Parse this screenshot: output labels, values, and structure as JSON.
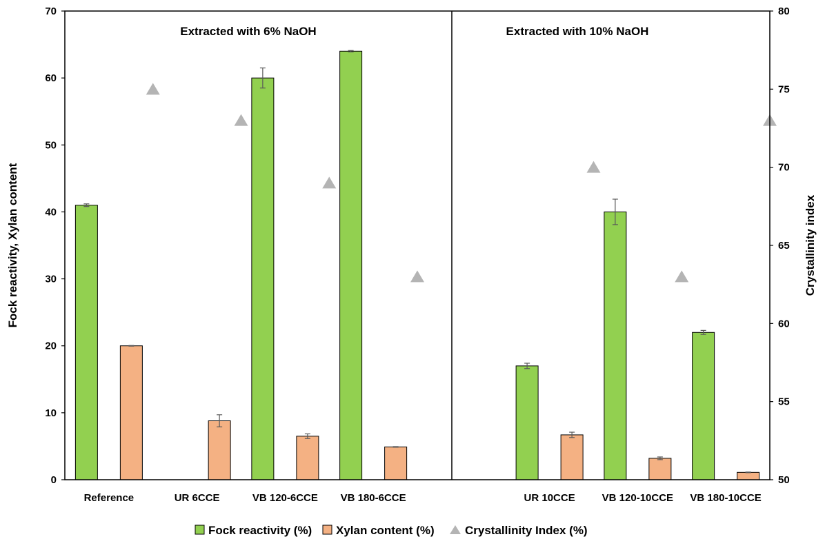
{
  "chart_data": {
    "type": "bar",
    "categories": [
      "Reference",
      "UR 6CCE",
      "VB 120-6CCE",
      "VB 180-6CCE",
      "",
      "UR 10CCE",
      "VB 120-10CCE",
      "VB 180-10CCE"
    ],
    "panels": [
      {
        "title": "Extracted with 6% NaOH",
        "categories": [
          "Reference",
          "UR 6CCE",
          "VB 120-6CCE",
          "VB 180-6CCE"
        ]
      },
      {
        "title": "Extracted with 10% NaOH",
        "categories": [
          "",
          "UR 10CCE",
          "VB 120-10CCE",
          "VB 180-10CCE"
        ]
      }
    ],
    "series": [
      {
        "name": "Fock reactivity (%)",
        "type": "bar",
        "axis": "left",
        "color": "#92d050",
        "values": [
          41,
          null,
          60,
          64,
          null,
          17,
          40,
          22
        ],
        "errors": [
          0.2,
          null,
          1.5,
          0.1,
          null,
          0.4,
          1.9,
          0.3
        ]
      },
      {
        "name": "Xylan content (%)",
        "type": "bar",
        "axis": "left",
        "color": "#f4b183",
        "values": [
          20,
          8.8,
          6.5,
          4.9,
          null,
          6.7,
          3.2,
          1.1
        ],
        "errors": [
          0.05,
          0.9,
          0.35,
          0.05,
          null,
          0.4,
          0.2,
          0.05
        ]
      },
      {
        "name": "Crystallinity Index (%)",
        "type": "scatter",
        "axis": "right",
        "color": "#b4b4b4",
        "marker": "triangle",
        "values": [
          75,
          73,
          69,
          63,
          null,
          70,
          63,
          73
        ]
      }
    ],
    "y_left": {
      "label": "Fock reactivity,  Xylan content",
      "range": [
        0,
        70
      ],
      "ticks": [
        "0",
        "10",
        "20",
        "30",
        "40",
        "50",
        "60",
        "70"
      ]
    },
    "y_right": {
      "label": "Crystallinity index",
      "range": [
        50,
        80
      ],
      "ticks": [
        "50",
        "55",
        "60",
        "65",
        "70",
        "75",
        "80"
      ]
    },
    "grid": false,
    "legend_position": "bottom-center"
  }
}
